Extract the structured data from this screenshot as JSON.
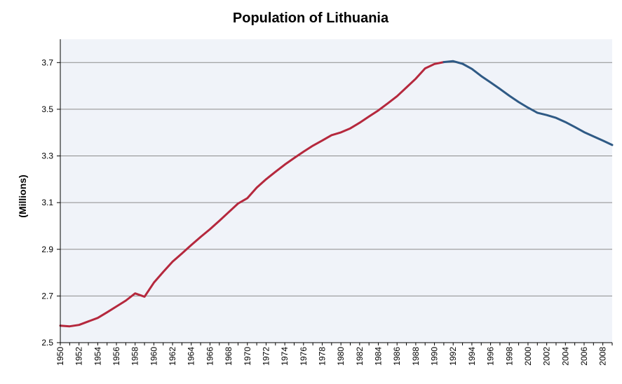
{
  "chart_data": {
    "type": "line",
    "title": "Population of Lithuania",
    "ylabel": "(Millions)",
    "xlabel": "",
    "xlim": [
      1950,
      2009
    ],
    "ylim": [
      2.5,
      3.8
    ],
    "yticks": [
      2.5,
      2.7,
      2.9,
      3.1,
      3.3,
      3.5,
      3.7
    ],
    "xticks": [
      1950,
      1952,
      1954,
      1956,
      1958,
      1960,
      1962,
      1964,
      1966,
      1968,
      1970,
      1972,
      1974,
      1976,
      1978,
      1980,
      1982,
      1984,
      1986,
      1988,
      1990,
      1992,
      1994,
      1996,
      1998,
      2000,
      2002,
      2004,
      2006,
      2008
    ],
    "grid": true,
    "legend": "none",
    "colors": {
      "plot_bg": "#f0f3f9",
      "grid": "#8c8c8c",
      "axis": "#000000"
    },
    "series": [
      {
        "color": "#b5283d",
        "x": [
          1950,
          1951,
          1952,
          1953,
          1954,
          1955,
          1956,
          1957,
          1958,
          1959,
          1960,
          1961,
          1962,
          1963,
          1964,
          1965,
          1966,
          1967,
          1968,
          1969,
          1970,
          1971,
          1972,
          1973,
          1974,
          1975,
          1976,
          1977,
          1978,
          1979,
          1980,
          1981,
          1982,
          1983,
          1984,
          1985,
          1986,
          1987,
          1988,
          1989,
          1990,
          1991
        ],
        "y": [
          2.573,
          2.57,
          2.576,
          2.591,
          2.606,
          2.63,
          2.655,
          2.68,
          2.711,
          2.697,
          2.757,
          2.803,
          2.847,
          2.882,
          2.918,
          2.953,
          2.986,
          3.022,
          3.059,
          3.096,
          3.119,
          3.164,
          3.2,
          3.232,
          3.263,
          3.291,
          3.318,
          3.344,
          3.366,
          3.389,
          3.401,
          3.418,
          3.442,
          3.469,
          3.495,
          3.525,
          3.556,
          3.593,
          3.631,
          3.675,
          3.694,
          3.702
        ]
      },
      {
        "color": "#2f5a85",
        "x": [
          1991,
          1992,
          1993,
          1994,
          1995,
          1996,
          1997,
          1998,
          1999,
          2000,
          2001,
          2002,
          2003,
          2004,
          2005,
          2006,
          2007,
          2008,
          2009
        ],
        "y": [
          3.702,
          3.706,
          3.695,
          3.673,
          3.642,
          3.615,
          3.587,
          3.558,
          3.531,
          3.507,
          3.485,
          3.475,
          3.463,
          3.445,
          3.424,
          3.402,
          3.384,
          3.366,
          3.347
        ]
      }
    ]
  }
}
